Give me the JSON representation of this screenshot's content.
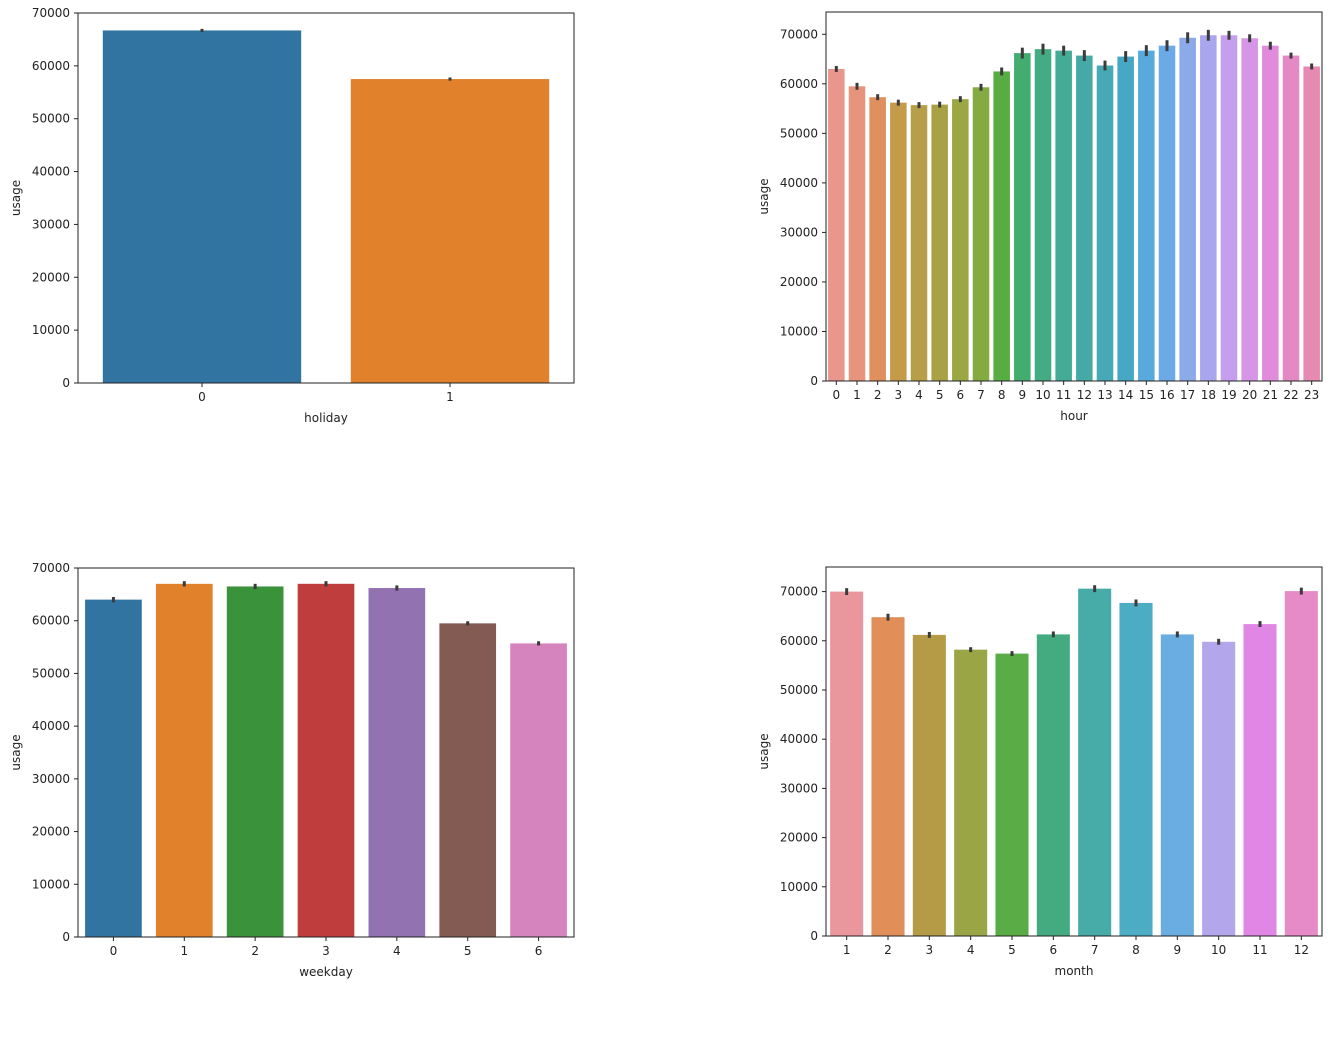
{
  "chart_data": [
    {
      "type": "bar",
      "xlabel": "holiday",
      "ylabel": "usage",
      "categories": [
        "0",
        "1"
      ],
      "values": [
        66700,
        57500
      ],
      "ci": [
        300,
        300
      ],
      "ylim": [
        0,
        70000
      ],
      "yticks": [
        0,
        10000,
        20000,
        30000,
        40000,
        50000,
        60000,
        70000
      ],
      "ytick_labels": [
        "0",
        "10000",
        "20000",
        "30000",
        "40000",
        "50000",
        "60000",
        "70000"
      ],
      "colors": [
        "#3274a1",
        "#e1812c"
      ],
      "grid": false
    },
    {
      "type": "bar",
      "xlabel": "hour",
      "ylabel": "usage",
      "categories": [
        "0",
        "1",
        "2",
        "3",
        "4",
        "5",
        "6",
        "7",
        "8",
        "9",
        "10",
        "11",
        "12",
        "13",
        "14",
        "15",
        "16",
        "17",
        "18",
        "19",
        "20",
        "21",
        "22",
        "23"
      ],
      "values": [
        63000,
        59500,
        57300,
        56200,
        55700,
        55800,
        56900,
        59300,
        62500,
        66200,
        67000,
        66700,
        65700,
        63700,
        65500,
        66700,
        67700,
        69300,
        69800,
        69800,
        69200,
        67700,
        65700,
        63500
      ],
      "ci": [
        600,
        700,
        600,
        600,
        600,
        600,
        600,
        700,
        800,
        1100,
        1100,
        1000,
        1100,
        1000,
        1100,
        1100,
        1100,
        1100,
        1100,
        900,
        800,
        800,
        600,
        600
      ],
      "ylim": [
        0,
        74500
      ],
      "yticks": [
        0,
        10000,
        20000,
        30000,
        40000,
        50000,
        60000,
        70000
      ],
      "ytick_labels": [
        "0",
        "10000",
        "20000",
        "30000",
        "40000",
        "50000",
        "60000",
        "70000"
      ],
      "colors": [
        "#e9968d",
        "#e6957c",
        "#e0905e",
        "#c59b4a",
        "#b79e49",
        "#a9a245",
        "#9aa743",
        "#84aa42",
        "#57ac42",
        "#42ad6f",
        "#43ac85",
        "#44ab97",
        "#45aaa6",
        "#46a9b5",
        "#46a8c4",
        "#58a9dc",
        "#6ba9e7",
        "#8ca9e8",
        "#a9a6ed",
        "#c59fed",
        "#d795e7",
        "#e08bdc",
        "#e589c5",
        "#e68ab1"
      ],
      "grid": false
    },
    {
      "type": "bar",
      "xlabel": "weekday",
      "ylabel": "usage",
      "categories": [
        "0",
        "1",
        "2",
        "3",
        "4",
        "5",
        "6"
      ],
      "values": [
        64000,
        67000,
        66500,
        67000,
        66200,
        59500,
        55700
      ],
      "ci": [
        500,
        500,
        500,
        500,
        500,
        400,
        400
      ],
      "ylim": [
        0,
        70000
      ],
      "yticks": [
        0,
        10000,
        20000,
        30000,
        40000,
        50000,
        60000,
        70000
      ],
      "ytick_labels": [
        "0",
        "10000",
        "20000",
        "30000",
        "40000",
        "50000",
        "60000",
        "70000"
      ],
      "colors": [
        "#3274a1",
        "#e1812c",
        "#3a923a",
        "#c03d3e",
        "#9372b2",
        "#845b53",
        "#d684bd"
      ],
      "grid": false
    },
    {
      "type": "bar",
      "xlabel": "month",
      "ylabel": "usage",
      "categories": [
        "1",
        "2",
        "3",
        "4",
        "5",
        "6",
        "7",
        "8",
        "9",
        "10",
        "11",
        "12"
      ],
      "values": [
        70000,
        64800,
        61200,
        58200,
        57400,
        61300,
        70600,
        67700,
        61300,
        59800,
        63400,
        70100
      ],
      "ci": [
        700,
        700,
        600,
        500,
        500,
        600,
        700,
        700,
        600,
        600,
        600,
        700
      ],
      "ylim": [
        0,
        75000
      ],
      "yticks": [
        0,
        10000,
        20000,
        30000,
        40000,
        50000,
        60000,
        70000
      ],
      "ytick_labels": [
        "0",
        "10000",
        "20000",
        "30000",
        "40000",
        "50000",
        "60000",
        "70000"
      ],
      "colors": [
        "#e9969d",
        "#e18e59",
        "#b69b46",
        "#9aa646",
        "#5aad46",
        "#44ab80",
        "#47aba8",
        "#4bacc4",
        "#6aaee1",
        "#b3a6eb",
        "#e087e6",
        "#e68bc7"
      ],
      "grid": false
    }
  ]
}
